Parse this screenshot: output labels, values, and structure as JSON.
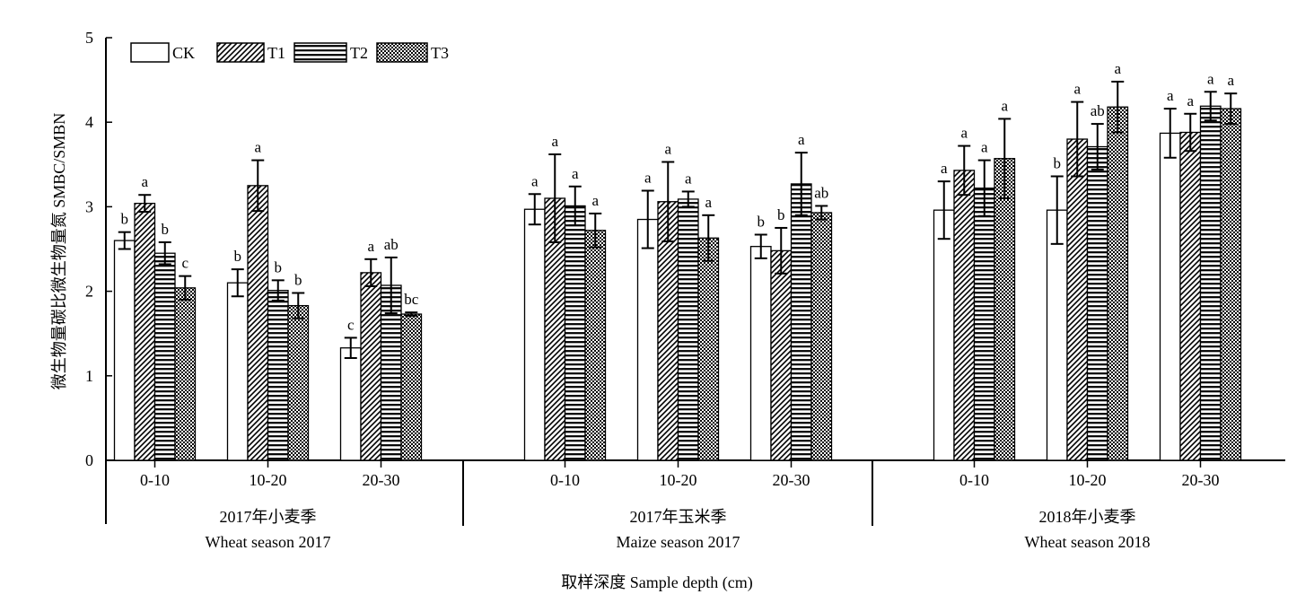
{
  "chart_data": {
    "type": "bar",
    "ylabel": "微生物量碳比微生物量氮 SMBC/SMBN",
    "xlabel": "取样深度 Sample depth (cm)",
    "ylim": [
      0,
      5
    ],
    "yticks": [
      "0",
      "1",
      "2",
      "3",
      "4",
      "5"
    ],
    "legend_position": "top-left",
    "series": [
      {
        "name": "CK",
        "pattern": "open"
      },
      {
        "name": "T1",
        "pattern": "diagonal"
      },
      {
        "name": "T2",
        "pattern": "horizontal"
      },
      {
        "name": "T3",
        "pattern": "crosshatch"
      }
    ],
    "groups": [
      {
        "label_cn": "2017年小麦季",
        "label_en": "Wheat season 2017",
        "depths": [
          {
            "label": "0-10",
            "values": [
              2.6,
              3.04,
              2.45,
              2.04
            ],
            "errors": [
              0.1,
              0.1,
              0.13,
              0.14
            ],
            "letters": [
              "b",
              "a",
              "b",
              "c"
            ]
          },
          {
            "label": "10-20",
            "values": [
              2.1,
              3.25,
              2.01,
              1.83
            ],
            "errors": [
              0.16,
              0.3,
              0.12,
              0.15
            ],
            "letters": [
              "b",
              "a",
              "b",
              "b"
            ]
          },
          {
            "label": "20-30",
            "values": [
              1.33,
              2.22,
              2.07,
              1.73
            ],
            "errors": [
              0.12,
              0.16,
              0.33,
              0.02
            ],
            "letters": [
              "c",
              "a",
              "ab",
              "bc"
            ]
          }
        ]
      },
      {
        "label_cn": "2017年玉米季",
        "label_en": "Maize season 2017",
        "depths": [
          {
            "label": "0-10",
            "values": [
              2.97,
              3.1,
              3.01,
              2.72
            ],
            "errors": [
              0.18,
              0.52,
              0.23,
              0.2
            ],
            "letters": [
              "a",
              "a",
              "a",
              "a"
            ]
          },
          {
            "label": "10-20",
            "values": [
              2.85,
              3.06,
              3.09,
              2.63
            ],
            "errors": [
              0.34,
              0.47,
              0.09,
              0.27
            ],
            "letters": [
              "a",
              "a",
              "a",
              "a"
            ]
          },
          {
            "label": "20-30",
            "values": [
              2.53,
              2.48,
              3.27,
              2.93
            ],
            "errors": [
              0.14,
              0.27,
              0.37,
              0.08
            ],
            "letters": [
              "b",
              "b",
              "a",
              "ab"
            ]
          }
        ]
      },
      {
        "label_cn": "2018年小麦季",
        "label_en": "Wheat season 2018",
        "depths": [
          {
            "label": "0-10",
            "values": [
              2.96,
              3.43,
              3.22,
              3.57
            ],
            "errors": [
              0.34,
              0.29,
              0.33,
              0.47
            ],
            "letters": [
              "a",
              "a",
              "a",
              "a"
            ]
          },
          {
            "label": "10-20",
            "values": [
              2.96,
              3.8,
              3.71,
              4.18
            ],
            "errors": [
              0.4,
              0.44,
              0.27,
              0.3
            ],
            "letters": [
              "b",
              "a",
              "ab",
              "a"
            ]
          },
          {
            "label": "20-30",
            "values": [
              3.87,
              3.88,
              4.19,
              4.16
            ],
            "errors": [
              0.29,
              0.22,
              0.17,
              0.18
            ],
            "letters": [
              "a",
              "a",
              "a",
              "a"
            ]
          }
        ]
      }
    ]
  }
}
